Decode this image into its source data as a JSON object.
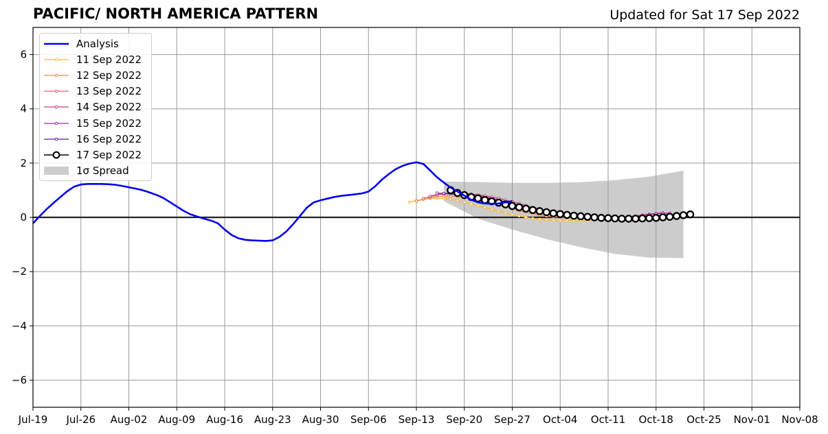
{
  "title": "PACIFIC/ NORTH AMERICA PATTERN",
  "subtitle": "Updated for Sat 17 Sep 2022",
  "chart_data": {
    "type": "line",
    "xlabel": "",
    "ylabel": "",
    "ylim": [
      -7,
      7
    ],
    "yticks": [
      -6,
      -4,
      -2,
      0,
      2,
      4,
      6
    ],
    "ytick_labels": [
      "−6",
      "−4",
      "−2",
      "0",
      "2",
      "4",
      "6"
    ],
    "xlim": [
      "2022-07-19",
      "2022-11-08"
    ],
    "xticks": [
      "2022-07-19",
      "2022-07-26",
      "2022-08-02",
      "2022-08-09",
      "2022-08-16",
      "2022-08-23",
      "2022-08-30",
      "2022-09-06",
      "2022-09-13",
      "2022-09-20",
      "2022-09-27",
      "2022-10-04",
      "2022-10-11",
      "2022-10-18",
      "2022-10-25",
      "2022-11-01",
      "2022-11-08"
    ],
    "xtick_labels": [
      "Jul-19",
      "Jul-26",
      "Aug-02",
      "Aug-09",
      "Aug-16",
      "Aug-23",
      "Aug-30",
      "Sep-06",
      "Sep-13",
      "Sep-20",
      "Sep-27",
      "Oct-04",
      "Oct-11",
      "Oct-18",
      "Oct-25",
      "Nov-01",
      "Nov-08"
    ],
    "grid": true,
    "legend_position": "top-left",
    "analysis": {
      "name": "Analysis",
      "color": "#0000ee",
      "x_start": "2022-07-19",
      "step_days": 1,
      "values": [
        -0.22,
        0.05,
        0.3,
        0.53,
        0.75,
        0.96,
        1.13,
        1.21,
        1.23,
        1.23,
        1.23,
        1.22,
        1.2,
        1.16,
        1.11,
        1.06,
        1.0,
        0.92,
        0.83,
        0.72,
        0.56,
        0.4,
        0.24,
        0.11,
        0.03,
        -0.05,
        -0.12,
        -0.22,
        -0.45,
        -0.65,
        -0.77,
        -0.83,
        -0.85,
        -0.86,
        -0.87,
        -0.85,
        -0.72,
        -0.52,
        -0.25,
        0.05,
        0.36,
        0.55,
        0.63,
        0.69,
        0.75,
        0.79,
        0.82,
        0.85,
        0.88,
        0.95,
        1.15,
        1.4,
        1.6,
        1.78,
        1.9,
        1.98,
        2.03,
        1.97,
        1.73,
        1.48,
        1.28,
        1.1,
        0.95,
        0.8,
        0.65,
        0.55,
        0.51,
        0.5,
        0.51,
        0.55,
        0.6
      ]
    },
    "forecasts": [
      {
        "name": "11 Sep 2022",
        "color": "#fcb72f",
        "x_start": "2022-09-12",
        "values": [
          0.56,
          0.62,
          0.67,
          0.7,
          0.7,
          0.69,
          0.67,
          0.62,
          0.56,
          0.5,
          0.43,
          0.36,
          0.29,
          0.22,
          0.16,
          0.1,
          0.05,
          0.0,
          -0.04,
          -0.07,
          -0.09,
          -0.11,
          -0.12,
          -0.12,
          -0.12,
          -0.12,
          -0.11,
          -0.1,
          -0.09
        ]
      },
      {
        "name": "12 Sep 2022",
        "color": "#f4883c",
        "x_start": "2022-09-13",
        "values": [
          0.6,
          0.66,
          0.72,
          0.76,
          0.78,
          0.78,
          0.77,
          0.74,
          0.7,
          0.65,
          0.59,
          0.52,
          0.45,
          0.38,
          0.31,
          0.24,
          0.18,
          0.13,
          0.08,
          0.05,
          0.02,
          0.0,
          -0.01,
          -0.02
        ]
      },
      {
        "name": "13 Sep 2022",
        "color": "#e05c6b",
        "x_start": "2022-09-14",
        "values": [
          0.7,
          0.76,
          0.82,
          0.86,
          0.88,
          0.88,
          0.87,
          0.84,
          0.8,
          0.75,
          0.7,
          0.64,
          0.57,
          0.5,
          0.43,
          0.36,
          0.3,
          0.24,
          0.19,
          0.15,
          0.11,
          0.08,
          0.05,
          0.03,
          0.01,
          0.0,
          -0.01,
          -0.02,
          -0.02,
          -0.02,
          -0.02,
          -0.01
        ]
      },
      {
        "name": "14 Sep 2022",
        "color": "#c4418a",
        "x_start": "2022-09-15",
        "values": [
          0.78,
          0.84,
          0.88,
          0.9,
          0.9,
          0.89,
          0.86,
          0.83,
          0.79,
          0.75,
          0.7,
          0.64,
          0.58,
          0.51,
          0.44,
          0.37,
          0.31,
          0.25,
          0.2,
          0.16,
          0.12,
          0.08,
          0.05,
          0.03,
          0.01,
          0.0,
          -0.01,
          -0.01,
          0.0,
          0.02,
          0.05,
          0.09,
          0.12,
          0.15,
          0.17
        ]
      },
      {
        "name": "15 Sep 2022",
        "color": "#9a2a9f",
        "x_start": "2022-09-16",
        "values": [
          0.9,
          0.88,
          0.86,
          0.84,
          0.82,
          0.8,
          0.76,
          0.71,
          0.66,
          0.6,
          0.53,
          0.46,
          0.4,
          0.34,
          0.28,
          0.23,
          0.18,
          0.14,
          0.11,
          0.08,
          0.05,
          0.03,
          0.01,
          0.0,
          -0.01,
          -0.02,
          -0.02,
          -0.01,
          0.0,
          0.03,
          0.06,
          0.1,
          0.13,
          0.15,
          0.16
        ]
      },
      {
        "name": "16 Sep 2022",
        "color": "#5c1f99",
        "x_start": "2022-09-17",
        "values": [
          0.88,
          0.87,
          0.85,
          0.82,
          0.79,
          0.76,
          0.72,
          0.68,
          0.63,
          0.57,
          0.51,
          0.45,
          0.39,
          0.33,
          0.28,
          0.23,
          0.18,
          0.14,
          0.1,
          0.07,
          0.04,
          0.02,
          0.0,
          -0.01,
          -0.02,
          -0.03,
          -0.03,
          -0.02,
          -0.01,
          0.0,
          0.02,
          0.05,
          0.08,
          0.11
        ]
      },
      {
        "name": "17 Sep 2022",
        "color": "#000000",
        "x_start": "2022-09-18",
        "values": [
          1.0,
          0.9,
          0.82,
          0.75,
          0.7,
          0.64,
          0.59,
          0.54,
          0.48,
          0.42,
          0.37,
          0.32,
          0.27,
          0.23,
          0.19,
          0.15,
          0.12,
          0.09,
          0.06,
          0.04,
          0.02,
          0.0,
          -0.02,
          -0.03,
          -0.04,
          -0.05,
          -0.05,
          -0.05,
          -0.04,
          -0.03,
          -0.02,
          0.0,
          0.02,
          0.05,
          0.08,
          0.11
        ]
      }
    ],
    "spread": {
      "name": "1σ Spread",
      "color": "#cccccc",
      "x": [
        "2022-09-17",
        "2022-09-22",
        "2022-09-27",
        "2022-10-02",
        "2022-10-07",
        "2022-10-12",
        "2022-10-17",
        "2022-10-22"
      ],
      "upper": [
        1.32,
        1.3,
        1.27,
        1.27,
        1.3,
        1.37,
        1.5,
        1.72
      ],
      "lower": [
        0.6,
        -0.05,
        -0.45,
        -0.8,
        -1.1,
        -1.35,
        -1.48,
        -1.5
      ]
    }
  },
  "legend": [
    {
      "label": "Analysis",
      "color": "#0000ee",
      "style": "analysis"
    },
    {
      "label": "11 Sep 2022",
      "color": "#fcb72f",
      "style": "forecast"
    },
    {
      "label": "12 Sep 2022",
      "color": "#f4883c",
      "style": "forecast"
    },
    {
      "label": "13 Sep 2022",
      "color": "#e05c6b",
      "style": "forecast"
    },
    {
      "label": "14 Sep 2022",
      "color": "#c4418a",
      "style": "forecast"
    },
    {
      "label": "15 Sep 2022",
      "color": "#9a2a9f",
      "style": "forecast"
    },
    {
      "label": "16 Sep 2022",
      "color": "#5c1f99",
      "style": "forecast"
    },
    {
      "label": "17 Sep 2022",
      "color": "#000000",
      "style": "latest"
    },
    {
      "label": "1σ Spread",
      "color": "#cccccc",
      "style": "spread"
    }
  ]
}
